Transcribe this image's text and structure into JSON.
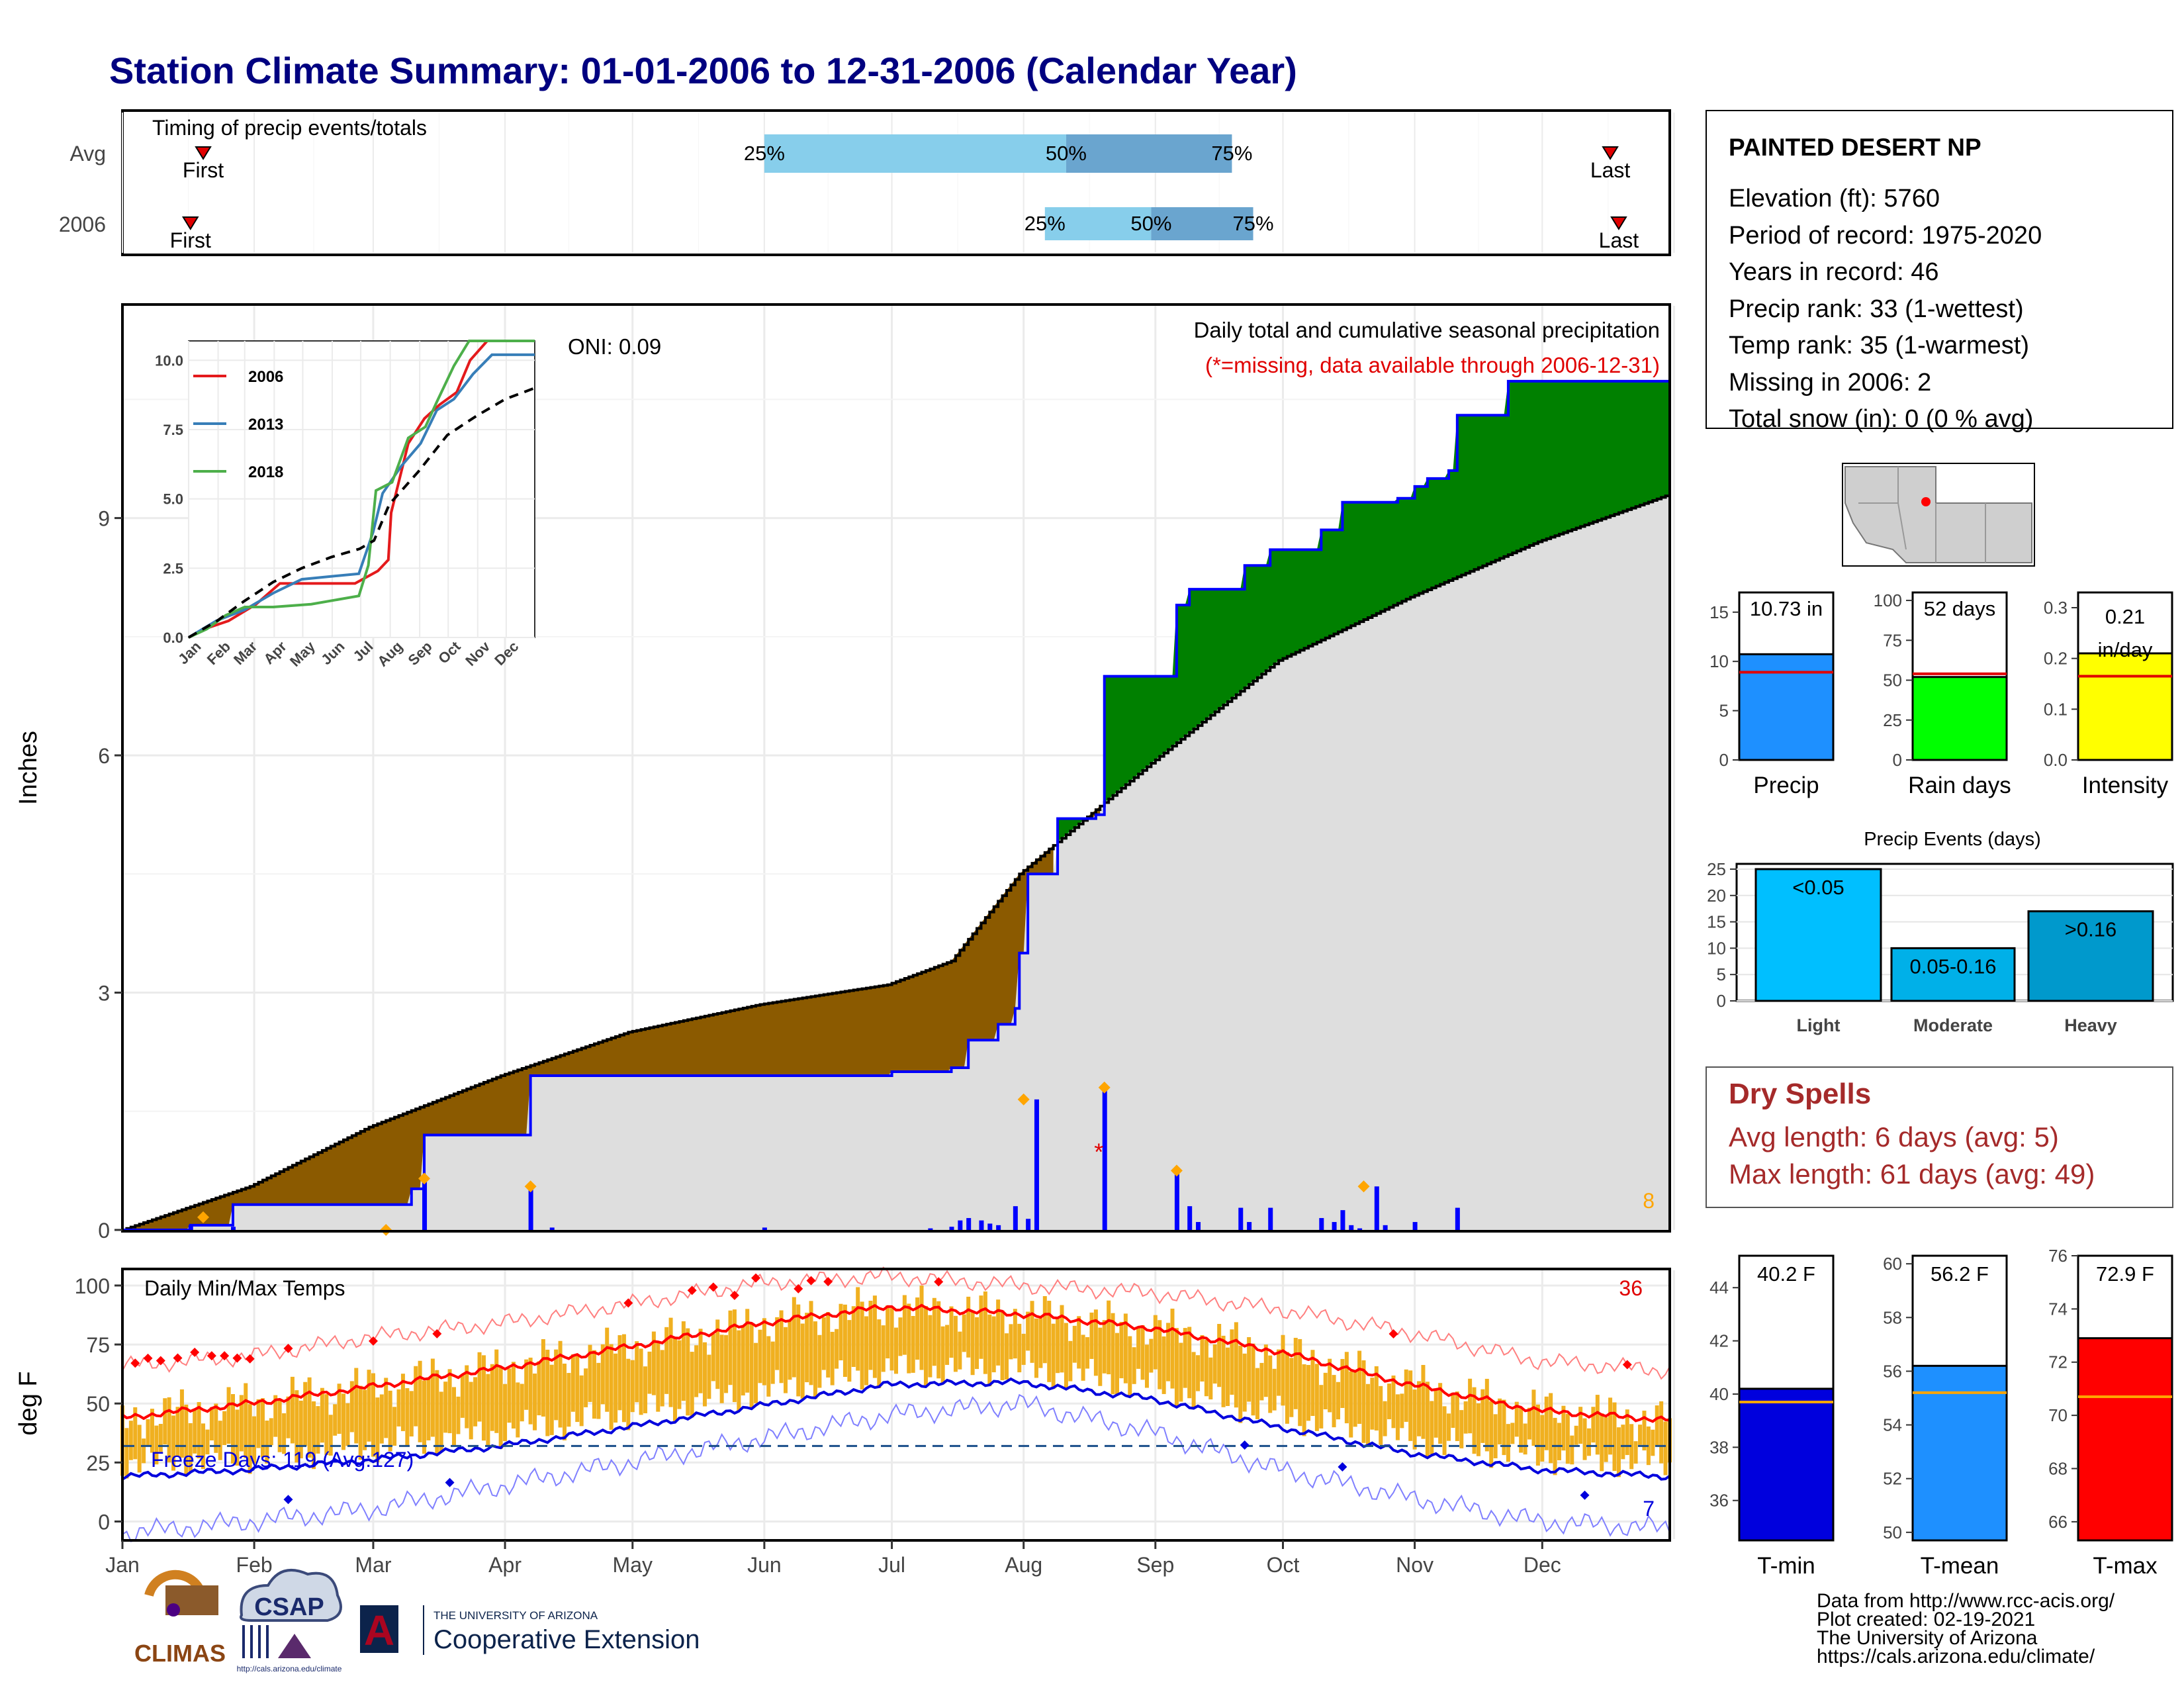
{
  "title": "Station Climate Summary: 01-01-2006 to 12-31-2006 (Calendar Year)",
  "months": [
    "Jan",
    "Feb",
    "Mar",
    "Apr",
    "May",
    "Jun",
    "Jul",
    "Aug",
    "Sep",
    "Oct",
    "Nov",
    "Dec"
  ],
  "colors": {
    "title": "#000080",
    "avg_bar_light": "#87ceeb",
    "avg_bar_dark": "#6aa5cf",
    "brown": "#8b5a00",
    "green": "#008000",
    "grey_fill": "#dedede",
    "blue": "#0000ff",
    "temp_bar": "#f0b020",
    "tmax": "#ff0000",
    "tmin": "#0000dd",
    "dry_title": "#a52a2a",
    "precip_bar": "#1e90ff",
    "raindays_bar": "#00ff00",
    "intensity_bar": "#ffff00",
    "light_bar": "#00bfff",
    "moderate_bar": "#00b0e8",
    "heavy_bar": "#0099cc",
    "marker_orange": "#ffa500"
  },
  "timing": {
    "label": "Timing of precip events/totals",
    "rows": [
      "Avg",
      "2006"
    ],
    "first_label": "First",
    "last_label": "Last",
    "p25": "25%",
    "p50": "50%",
    "p75": "75%",
    "avg": {
      "first_doy": 20,
      "p25_doy": 152,
      "p50_doy": 223,
      "p75_doy": 262,
      "last_doy": 351
    },
    "y2006": {
      "first_doy": 17,
      "p25_doy": 218,
      "p50_doy": 243,
      "p75_doy": 267,
      "last_doy": 353
    }
  },
  "main_chart": {
    "ylabel": "Inches",
    "yticks": [
      "0",
      "3",
      "6",
      "9"
    ],
    "ylim": [
      0,
      11.7
    ],
    "title_line1": "Daily total and cumulative seasonal precipitation",
    "title_line2": "(*=missing, data available through 2006-12-31)",
    "oni_label": "ONI: 0.09",
    "count_label": "8",
    "cumulative_2006": [
      [
        1,
        0
      ],
      [
        17,
        0.06
      ],
      [
        27,
        0.32
      ],
      [
        43,
        0.32
      ],
      [
        55,
        0.32
      ],
      [
        69,
        0.52
      ],
      [
        72,
        1.2
      ],
      [
        94,
        1.2
      ],
      [
        97,
        1.95
      ],
      [
        176,
        1.95
      ],
      [
        182,
        2.0
      ],
      [
        196,
        2.05
      ],
      [
        200,
        2.4
      ],
      [
        207,
        2.6
      ],
      [
        211,
        2.8
      ],
      [
        212,
        3.5
      ],
      [
        214,
        4.5
      ],
      [
        221,
        5.2
      ],
      [
        230,
        5.25
      ],
      [
        232,
        7.0
      ],
      [
        248,
        7.0
      ],
      [
        249,
        7.9
      ],
      [
        252,
        8.1
      ],
      [
        262,
        8.1
      ],
      [
        265,
        8.4
      ],
      [
        271,
        8.6
      ],
      [
        280,
        8.6
      ],
      [
        283,
        8.85
      ],
      [
        288,
        9.2
      ],
      [
        301,
        9.25
      ],
      [
        305,
        9.4
      ],
      [
        308,
        9.5
      ],
      [
        313,
        9.6
      ],
      [
        315,
        10.3
      ],
      [
        326,
        10.3
      ],
      [
        327,
        10.73
      ],
      [
        365,
        10.75
      ]
    ],
    "cumulative_avg": [
      [
        1,
        0
      ],
      [
        31,
        0.55
      ],
      [
        59,
        1.3
      ],
      [
        90,
        1.95
      ],
      [
        120,
        2.5
      ],
      [
        151,
        2.85
      ],
      [
        181,
        3.1
      ],
      [
        196,
        3.4
      ],
      [
        212,
        4.5
      ],
      [
        243,
        5.9
      ],
      [
        273,
        7.2
      ],
      [
        304,
        8.0
      ],
      [
        334,
        8.7
      ],
      [
        365,
        9.3
      ]
    ],
    "daily_2006": [
      [
        17,
        0.06
      ],
      [
        27,
        0.04
      ],
      [
        72,
        0.68
      ],
      [
        97,
        0.55
      ],
      [
        102,
        0.03
      ],
      [
        152,
        0.03
      ],
      [
        191,
        0.02
      ],
      [
        196,
        0.04
      ],
      [
        198,
        0.12
      ],
      [
        200,
        0.15
      ],
      [
        203,
        0.12
      ],
      [
        205,
        0.08
      ],
      [
        207,
        0.06
      ],
      [
        211,
        0.3
      ],
      [
        214,
        0.14
      ],
      [
        216,
        1.65
      ],
      [
        232,
        1.8
      ],
      [
        249,
        0.75
      ],
      [
        252,
        0.3
      ],
      [
        254,
        0.1
      ],
      [
        264,
        0.28
      ],
      [
        266,
        0.1
      ],
      [
        271,
        0.28
      ],
      [
        283,
        0.15
      ],
      [
        286,
        0.1
      ],
      [
        288,
        0.25
      ],
      [
        290,
        0.06
      ],
      [
        292,
        0.02
      ],
      [
        296,
        0.55
      ],
      [
        298,
        0.06
      ],
      [
        305,
        0.1
      ],
      [
        315,
        0.28
      ]
    ],
    "daily_avg_markers": [
      [
        20,
        0.16
      ],
      [
        63,
        0.0
      ],
      [
        72,
        0.65
      ],
      [
        97,
        0.55
      ],
      [
        213,
        1.65
      ],
      [
        232,
        1.8
      ],
      [
        249,
        0.75
      ],
      [
        293,
        0.55
      ]
    ]
  },
  "inset_chart": {
    "type": "line",
    "xlabels": [
      "Jan",
      "Feb",
      "Mar",
      "Apr",
      "May",
      "Jun",
      "Jul",
      "Aug",
      "Sep",
      "Oct",
      "Nov",
      "Dec"
    ],
    "yticks": [
      "0.0",
      "2.5",
      "5.0",
      "7.5",
      "10.0"
    ],
    "ylim": [
      0,
      10.7
    ],
    "series": [
      {
        "name": "2006",
        "color": "#e41a1c",
        "points": [
          [
            1,
            0
          ],
          [
            17,
            0.3
          ],
          [
            43,
            0.6
          ],
          [
            72,
            1.2
          ],
          [
            97,
            1.95
          ],
          [
            176,
            1.95
          ],
          [
            200,
            2.4
          ],
          [
            211,
            2.8
          ],
          [
            214,
            4.5
          ],
          [
            232,
            7.0
          ],
          [
            249,
            7.9
          ],
          [
            265,
            8.4
          ],
          [
            283,
            8.85
          ],
          [
            297,
            10.0
          ],
          [
            315,
            10.7
          ],
          [
            365,
            10.7
          ]
        ]
      },
      {
        "name": "2013",
        "color": "#377eb8",
        "points": [
          [
            1,
            0
          ],
          [
            30,
            0.6
          ],
          [
            60,
            1.0
          ],
          [
            90,
            1.6
          ],
          [
            120,
            2.1
          ],
          [
            180,
            2.3
          ],
          [
            195,
            3.8
          ],
          [
            205,
            5.2
          ],
          [
            225,
            6.2
          ],
          [
            245,
            7.0
          ],
          [
            262,
            8.2
          ],
          [
            280,
            8.6
          ],
          [
            300,
            9.5
          ],
          [
            320,
            10.2
          ],
          [
            365,
            10.2
          ]
        ]
      },
      {
        "name": "2018",
        "color": "#4daf4a",
        "points": [
          [
            1,
            0
          ],
          [
            20,
            0.3
          ],
          [
            40,
            0.8
          ],
          [
            60,
            1.1
          ],
          [
            90,
            1.1
          ],
          [
            130,
            1.2
          ],
          [
            180,
            1.5
          ],
          [
            190,
            2.6
          ],
          [
            198,
            5.3
          ],
          [
            215,
            5.6
          ],
          [
            232,
            7.2
          ],
          [
            250,
            7.6
          ],
          [
            262,
            8.5
          ],
          [
            280,
            9.8
          ],
          [
            296,
            10.7
          ],
          [
            365,
            10.7
          ]
        ]
      },
      {
        "name": "Avg",
        "color": "#000000",
        "dashed": true,
        "points": [
          [
            1,
            0
          ],
          [
            31,
            0.6
          ],
          [
            59,
            1.3
          ],
          [
            90,
            2.0
          ],
          [
            120,
            2.5
          ],
          [
            151,
            2.9
          ],
          [
            181,
            3.2
          ],
          [
            196,
            3.5
          ],
          [
            212,
            4.8
          ],
          [
            243,
            6.0
          ],
          [
            273,
            7.3
          ],
          [
            304,
            8.0
          ],
          [
            334,
            8.6
          ],
          [
            365,
            9.0
          ]
        ]
      }
    ]
  },
  "temp_chart": {
    "ylabel": "deg F",
    "yticks": [
      "0",
      "25",
      "50",
      "75",
      "100"
    ],
    "ylim": [
      -8,
      107
    ],
    "title": "Daily Min/Max Temps",
    "freeze_label": "Freeze Days: 119 (Avg:127)",
    "count_high": "36",
    "count_low": "7",
    "freeze_line": 32,
    "tmax_avg": [
      [
        1,
        44
      ],
      [
        31,
        50
      ],
      [
        59,
        57
      ],
      [
        90,
        65
      ],
      [
        120,
        74
      ],
      [
        151,
        84
      ],
      [
        181,
        91
      ],
      [
        212,
        88
      ],
      [
        243,
        82
      ],
      [
        273,
        72
      ],
      [
        304,
        58
      ],
      [
        334,
        47
      ],
      [
        365,
        43
      ]
    ],
    "tmin_avg": [
      [
        1,
        19
      ],
      [
        31,
        22
      ],
      [
        59,
        26
      ],
      [
        90,
        32
      ],
      [
        120,
        40
      ],
      [
        151,
        49
      ],
      [
        181,
        58
      ],
      [
        212,
        59
      ],
      [
        243,
        52
      ],
      [
        273,
        40
      ],
      [
        304,
        29
      ],
      [
        334,
        22
      ],
      [
        365,
        19
      ]
    ],
    "tmax_record": [
      [
        1,
        66
      ],
      [
        31,
        70
      ],
      [
        59,
        78
      ],
      [
        90,
        84
      ],
      [
        120,
        92
      ],
      [
        151,
        101
      ],
      [
        181,
        104
      ],
      [
        212,
        100
      ],
      [
        243,
        97
      ],
      [
        273,
        90
      ],
      [
        304,
        80
      ],
      [
        334,
        68
      ],
      [
        365,
        64
      ]
    ],
    "tmin_record": [
      [
        1,
        -5
      ],
      [
        31,
        0
      ],
      [
        59,
        5
      ],
      [
        90,
        15
      ],
      [
        120,
        25
      ],
      [
        151,
        35
      ],
      [
        181,
        45
      ],
      [
        212,
        50
      ],
      [
        243,
        38
      ],
      [
        273,
        22
      ],
      [
        304,
        10
      ],
      [
        334,
        0
      ],
      [
        365,
        -3
      ]
    ]
  },
  "station": {
    "name": "PAINTED DESERT NP",
    "lines": [
      "Elevation (ft): 5760",
      "Period of record: 1975-2020",
      "Years in record: 46",
      "Precip rank: 33 (1-wettest)",
      "Temp rank: 35 (1-warmest)",
      "Missing in 2006: 2",
      "Total snow (in): 0 (0 % avg)"
    ]
  },
  "summary_bars": [
    {
      "label": "Precip",
      "value_text": "10.73 in",
      "value": 10.73,
      "avg": 8.9,
      "max": 17,
      "yticks": [
        "0",
        "5",
        "10",
        "15"
      ],
      "ytick_vals": [
        0,
        5,
        10,
        15
      ],
      "colorKey": "precip_bar"
    },
    {
      "label": "Rain days",
      "value_text": "52 days",
      "value": 52,
      "avg": 54,
      "max": 105,
      "yticks": [
        "0",
        "25",
        "50",
        "75",
        "100"
      ],
      "ytick_vals": [
        0,
        25,
        50,
        75,
        100
      ],
      "colorKey": "raindays_bar"
    },
    {
      "label": "Intensity",
      "value_text": "0.21 in/day",
      "value": 0.21,
      "avg": 0.165,
      "max": 0.33,
      "yticks": [
        "0.0",
        "0.1",
        "0.2",
        "0.3"
      ],
      "ytick_vals": [
        0,
        0.1,
        0.2,
        0.3
      ],
      "colorKey": "intensity_bar"
    }
  ],
  "precip_events": {
    "title": "Precip Events (days)",
    "yticks": [
      "0",
      "5",
      "10",
      "15",
      "20",
      "25"
    ],
    "categories": [
      "Light",
      "Moderate",
      "Heavy"
    ],
    "bar_labels": [
      "<0.05",
      "0.05-0.16",
      ">0.16"
    ],
    "values": [
      25,
      10,
      17
    ],
    "ylim": [
      0,
      26
    ]
  },
  "dry_spells": {
    "title": "Dry Spells",
    "line1": "Avg length: 6 days (avg: 5)",
    "line2": "Max length: 61 days (avg: 49)"
  },
  "temp_bars": [
    {
      "label": "T-min",
      "value_text": "40.2 F",
      "value": 40.2,
      "avg": 39.7,
      "ymin": 34.5,
      "ymax": 45.2,
      "yticks": [
        "36",
        "38",
        "40",
        "42",
        "44"
      ],
      "ytick_vals": [
        36,
        38,
        40,
        42,
        44
      ],
      "colorKey": "tmin"
    },
    {
      "label": "T-mean",
      "value_text": "56.2 F",
      "value": 56.2,
      "avg": 55.2,
      "ymin": 49.7,
      "ymax": 60.3,
      "yticks": [
        "50",
        "52",
        "54",
        "56",
        "58",
        "60"
      ],
      "ytick_vals": [
        50,
        52,
        54,
        56,
        58,
        60
      ],
      "colorKey": "precip_bar"
    },
    {
      "label": "T-max",
      "value_text": "72.9 F",
      "value": 72.9,
      "avg": 70.7,
      "ymin": 65.3,
      "ymax": 76.0,
      "yticks": [
        "66",
        "68",
        "70",
        "72",
        "74",
        "76"
      ],
      "ytick_vals": [
        66,
        68,
        70,
        72,
        74,
        76
      ],
      "colorKey": "tmax"
    }
  ],
  "footer": {
    "lines": [
      "Data from http://www.rcc-acis.org/",
      "Plot created: 02-19-2021",
      "The University of Arizona",
      "https://cals.arizona.edu/climate/"
    ],
    "climas": "CLIMAS",
    "csap": "CSAP",
    "csap_url": "http://cals.arizona.edu/climate",
    "ua_small": "THE UNIVERSITY OF ARIZONA",
    "ua_big": "Cooperative Extension",
    "ua_letter": "A"
  }
}
